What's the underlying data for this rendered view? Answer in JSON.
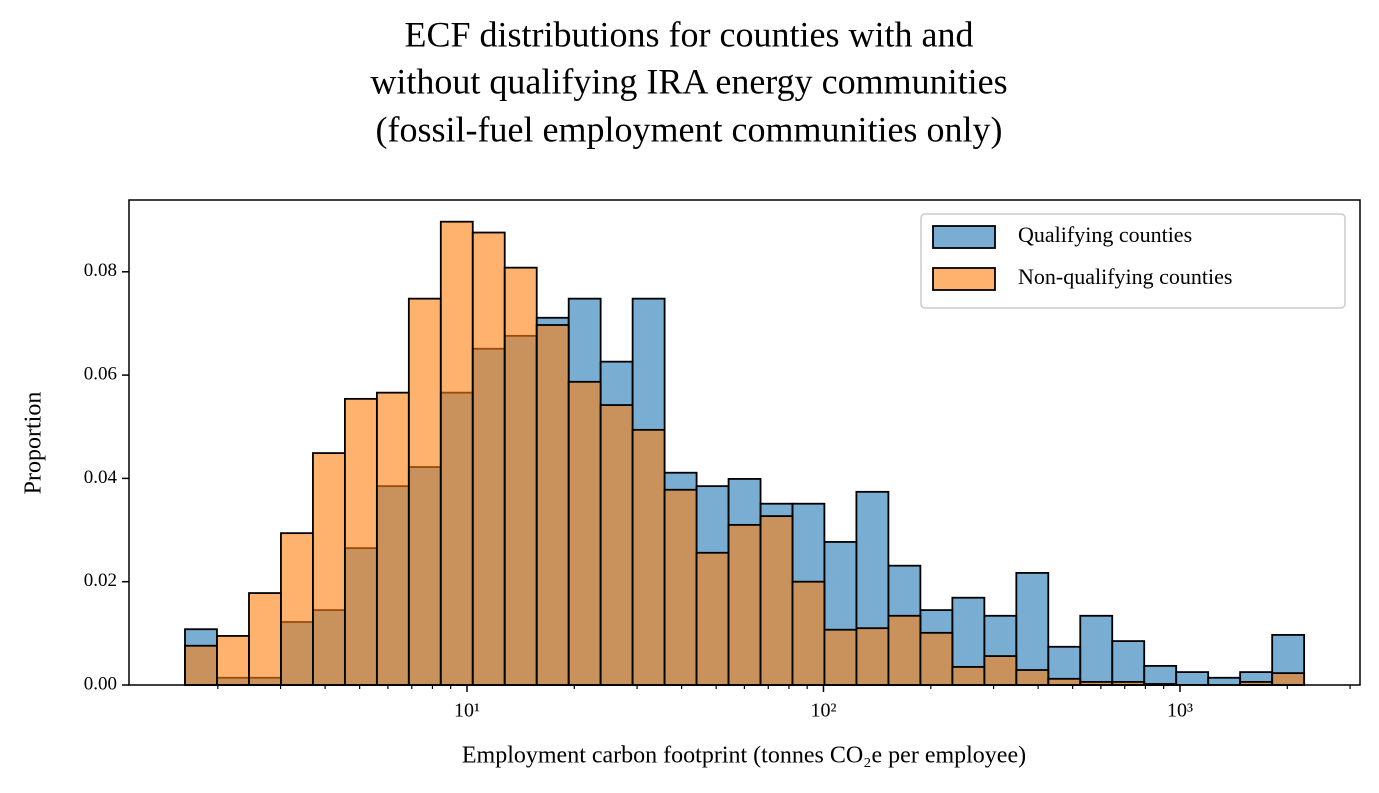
{
  "chart_data": {
    "type": "histogram",
    "title": [
      "ECF distributions for counties with and",
      "without qualifying IRA energy communities",
      "(fossil-fuel employment communities only)"
    ],
    "xlabel": "Employment carbon footprint (tonnes CO₂e per employee)",
    "ylabel": "Proportion",
    "xscale": "log",
    "bins": [
      1.618,
      1.989,
      2.446,
      3.007,
      3.697,
      4.545,
      5.588,
      6.869,
      8.444,
      10.38,
      12.76,
      15.69,
      19.29,
      23.71,
      29.15,
      35.84,
      44.06,
      54.17,
      66.6,
      81.87,
      100.6,
      123.7,
      152.1,
      187.0,
      229.9,
      282.7,
      347.5,
      427.2,
      525.2,
      645.7,
      793.8,
      975.9,
      1200,
      1475,
      1814,
      2230
    ],
    "series": [
      {
        "name": "Qualifying counties",
        "color": "#1f77b4",
        "values": [
          0.0108,
          0.0014,
          0.0014,
          0.0122,
          0.0145,
          0.0265,
          0.0385,
          0.0422,
          0.0566,
          0.0651,
          0.0676,
          0.0711,
          0.0748,
          0.0626,
          0.0748,
          0.0411,
          0.0385,
          0.0399,
          0.0351,
          0.0351,
          0.0277,
          0.0374,
          0.0231,
          0.0145,
          0.0169,
          0.0134,
          0.0217,
          0.0074,
          0.0134,
          0.0085,
          0.0037,
          0.0025,
          0.0014,
          0.0025,
          0.0097
        ]
      },
      {
        "name": "Non-qualifying counties",
        "color": "#ff7f0e",
        "values": [
          0.0076,
          0.0095,
          0.0178,
          0.0294,
          0.0449,
          0.0554,
          0.0566,
          0.0748,
          0.0897,
          0.0876,
          0.0808,
          0.0697,
          0.0587,
          0.0542,
          0.0494,
          0.0378,
          0.0256,
          0.031,
          0.0327,
          0.02,
          0.0107,
          0.011,
          0.0134,
          0.0101,
          0.0035,
          0.0056,
          0.0029,
          0.0012,
          0.0006,
          0.0006,
          0.0002,
          0,
          0,
          0.0006,
          0.0023
        ]
      }
    ],
    "xlim": [
      1.127,
      3199
    ],
    "xticks": [
      {
        "value": 10,
        "label": "10¹"
      },
      {
        "value": 100,
        "label": "10²"
      },
      {
        "value": 1000,
        "label": "10³"
      }
    ],
    "xminorticks": [
      2,
      3,
      4,
      5,
      6,
      7,
      8,
      9,
      20,
      30,
      40,
      50,
      60,
      70,
      80,
      90,
      200,
      300,
      400,
      500,
      600,
      700,
      800,
      900,
      2000,
      3000
    ],
    "ylim": [
      0,
      0.0939
    ],
    "yticks": [
      {
        "value": 0,
        "label": "0.00"
      },
      {
        "value": 0.02,
        "label": "0.02"
      },
      {
        "value": 0.04,
        "label": "0.04"
      },
      {
        "value": 0.06,
        "label": "0.06"
      },
      {
        "value": 0.08,
        "label": "0.08"
      }
    ],
    "legend": "upper right",
    "bar_opacity": 0.6
  }
}
